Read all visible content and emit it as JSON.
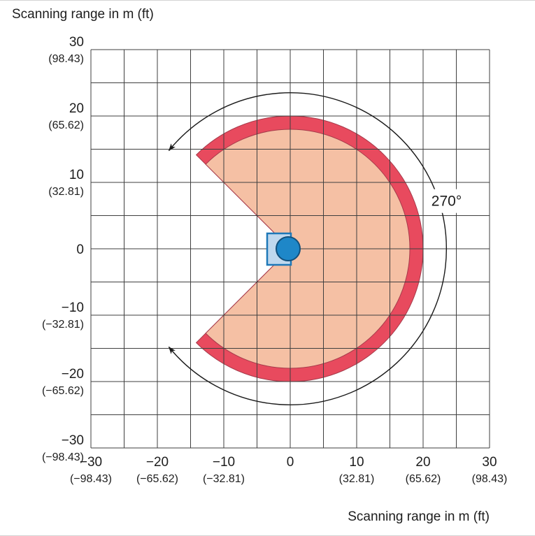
{
  "titles": {
    "top_left": "Scanning range in m (ft)",
    "bottom_right": "Scanning range in m (ft)"
  },
  "annotation": {
    "angle_label": "270°"
  },
  "colors": {
    "background": "#ffffff",
    "grid": "#3f3f3f",
    "text": "#1d1d1d",
    "arc": "#1a1a1a",
    "field_fill": "#F5C0A4",
    "band_fill": "#E84A5E",
    "band_edge": "#A63B4B",
    "sensor_body_fill": "#BFD8EE",
    "sensor_body_stroke": "#1E78B8",
    "sensor_head_fill": "#1E87C8",
    "sensor_head_stroke": "#11507C"
  },
  "chart_data": {
    "type": "area",
    "title": "Scanning range in m (ft)",
    "xlabel": "Scanning range in m (ft)",
    "ylabel": "Scanning range in m (ft)",
    "xlim": [
      -30,
      30
    ],
    "ylim": [
      -30,
      30
    ],
    "grid_step_m": 5,
    "grid": "on",
    "x_ticks": [
      {
        "value": -30,
        "label": "−30",
        "ft_label": "(−98.43)"
      },
      {
        "value": -20,
        "label": "−20",
        "ft_label": "(−65.62)"
      },
      {
        "value": -10,
        "label": "−10",
        "ft_label": "(−32.81)"
      },
      {
        "value": 0,
        "label": "0"
      },
      {
        "value": 10,
        "label": "10",
        "ft_label": "(32.81)"
      },
      {
        "value": 20,
        "label": "20",
        "ft_label": "(65.62)"
      },
      {
        "value": 30,
        "label": "30",
        "ft_label": "(98.43)"
      }
    ],
    "y_ticks": [
      {
        "value": 30,
        "label": "30",
        "ft_label": "(98.43)"
      },
      {
        "value": 20,
        "label": "20",
        "ft_label": "(65.62)"
      },
      {
        "value": 10,
        "label": "10",
        "ft_label": "(32.81)"
      },
      {
        "value": 0,
        "label": "0"
      },
      {
        "value": -10,
        "label": "−10",
        "ft_label": "(−32.81)"
      },
      {
        "value": -20,
        "label": "−20",
        "ft_label": "(−65.62)"
      },
      {
        "value": -30,
        "label": "−30",
        "ft_label": "(−98.43)"
      }
    ],
    "field": {
      "shape": "circular-sector",
      "center_m": [
        0,
        0
      ],
      "sweep_deg": 270,
      "start_angle_deg": 135,
      "end_angle_deg": -135,
      "outer_radius_m": 20,
      "inner_radius_m": 18
    },
    "angle_arc": {
      "radius_m": 23.5,
      "start_angle_deg": 141,
      "end_angle_deg": -141,
      "label": "270°",
      "label_angle_deg": 17,
      "label_radius_m": 24.6
    },
    "sensor": {
      "position_m": [
        0,
        0
      ]
    }
  }
}
